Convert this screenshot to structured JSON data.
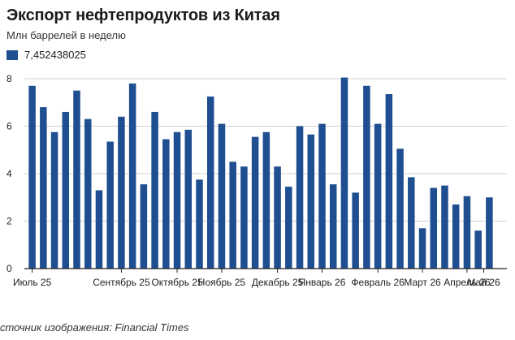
{
  "title": "Экспорт нефтепродуктов из Китая",
  "subtitle": "Млн баррелей в неделю",
  "legend_label": "7,452438025",
  "source_prefix": "сточник изображения: ",
  "source_name": "Financial Times",
  "colors": {
    "bar": "#1f4e91",
    "grid": "#d0d0d0",
    "axis": "#222222",
    "text": "#222222"
  },
  "chart_data": {
    "type": "bar",
    "title": "Экспорт нефтепродуктов из Китая",
    "ylabel": "Млн баррелей в неделю",
    "xlabel": "",
    "ylim": [
      0,
      8
    ],
    "yticks": [
      0,
      2,
      4,
      6,
      8
    ],
    "grid": true,
    "legend_position": "top-left",
    "series": [
      {
        "name": "7,452438025",
        "values": [
          7.7,
          6.8,
          5.75,
          6.6,
          7.5,
          6.3,
          3.3,
          5.35,
          6.4,
          7.8,
          3.55,
          6.6,
          5.45,
          5.75,
          5.85,
          3.75,
          7.25,
          6.1,
          4.5,
          4.3,
          5.55,
          5.75,
          4.3,
          3.45,
          6.0,
          5.65,
          6.1,
          3.55,
          8.05,
          3.2,
          7.7,
          6.1,
          7.35,
          5.05,
          3.85,
          1.7,
          3.4,
          3.5,
          2.7,
          3.05,
          1.6,
          3.0
        ]
      }
    ],
    "x_tick_labels": [
      {
        "label": "Июль 25",
        "index": 0
      },
      {
        "label": "Сентябрь 25",
        "index": 8
      },
      {
        "label": "Октябрь 25",
        "index": 13
      },
      {
        "label": "Ноябрь 25",
        "index": 17
      },
      {
        "label": "Декабрь 25",
        "index": 22
      },
      {
        "label": "Январь 26",
        "index": 26
      },
      {
        "label": "Февраль 26",
        "index": 31
      },
      {
        "label": "Март 26",
        "index": 35
      },
      {
        "label": "Апрель 26",
        "index": 39
      },
      {
        "label": "Май 26",
        "index": 43
      }
    ]
  }
}
